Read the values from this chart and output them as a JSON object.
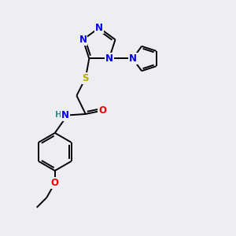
{
  "bg_color": "#eeeef2",
  "atom_colors": {
    "N": "#0000ee",
    "O": "#ee0000",
    "S": "#bbaa00",
    "C": "#000000",
    "H": "#3a8a8a"
  },
  "bond_color": "#000000",
  "figsize": [
    3.0,
    3.0
  ],
  "dpi": 100,
  "lw": 1.4,
  "fs": 8.5,
  "fs_small": 7.5
}
